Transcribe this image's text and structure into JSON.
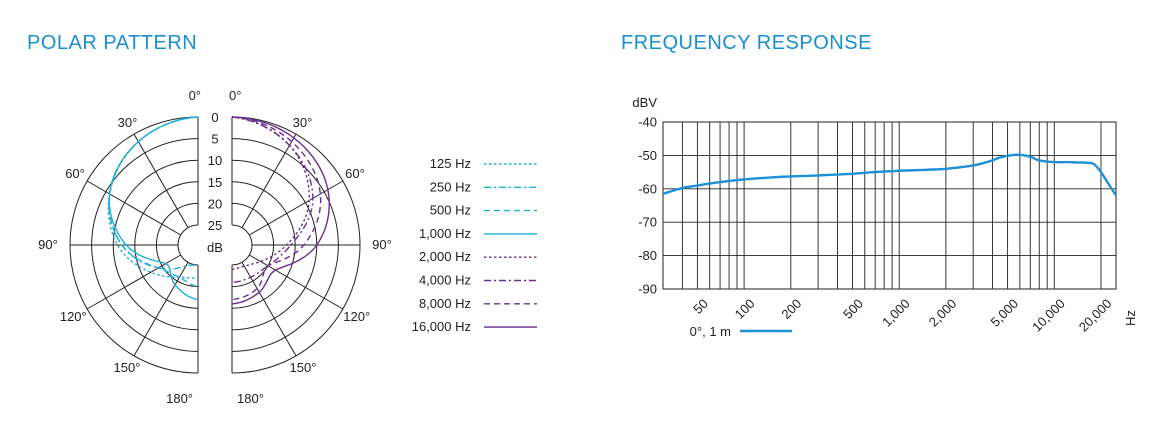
{
  "colors": {
    "title": "#1a8fd0",
    "cyan": "#1fb0d8",
    "purple": "#6b2f8f",
    "freq_line": "#1e90d6",
    "grid": "#222222"
  },
  "polar": {
    "title": "POLAR PATTERN",
    "db_rings": [
      "0",
      "5",
      "10",
      "15",
      "20",
      "25"
    ],
    "db_unit": "dB",
    "left_angles": [
      "0°",
      "30°",
      "60°",
      "90°",
      "120°",
      "150°",
      "180°"
    ],
    "right_angles": [
      "0°",
      "30°",
      "60°",
      "90°",
      "120°",
      "150°",
      "180°"
    ]
  },
  "legend": [
    {
      "label": "125 Hz",
      "style": "dotted",
      "color": "cyan"
    },
    {
      "label": "250 Hz",
      "style": "dash-dot",
      "color": "cyan"
    },
    {
      "label": "500 Hz",
      "style": "dashed",
      "color": "cyan"
    },
    {
      "label": "1,000 Hz",
      "style": "solid",
      "color": "cyan"
    },
    {
      "label": "2,000 Hz",
      "style": "dotted",
      "color": "purple"
    },
    {
      "label": "4,000 Hz",
      "style": "dash-dot",
      "color": "purple"
    },
    {
      "label": "8,000 Hz",
      "style": "dashed",
      "color": "purple"
    },
    {
      "label": "16,000 Hz",
      "style": "solid",
      "color": "purple"
    }
  ],
  "freq": {
    "title": "FREQUENCY RESPONSE",
    "legend_label": "0°, 1 m"
  },
  "chart_data": [
    {
      "type": "polar",
      "title": "POLAR PATTERN",
      "radial_unit": "dB",
      "radial_ticks": [
        0,
        5,
        10,
        15,
        20,
        25
      ],
      "angle_ticks_deg": [
        0,
        30,
        60,
        90,
        120,
        150,
        180
      ],
      "series": [
        {
          "name": "125 Hz",
          "side": "left",
          "angles": [
            0,
            30,
            60,
            90,
            120,
            150,
            180
          ],
          "attenuation_db": [
            0,
            2,
            6,
            11,
            17,
            21,
            22
          ]
        },
        {
          "name": "250 Hz",
          "side": "left",
          "angles": [
            0,
            30,
            60,
            90,
            120,
            150,
            180
          ],
          "attenuation_db": [
            0,
            2,
            6,
            12,
            19,
            24,
            25
          ]
        },
        {
          "name": "500 Hz",
          "side": "left",
          "angles": [
            0,
            30,
            60,
            90,
            120,
            150,
            180
          ],
          "attenuation_db": [
            0,
            2,
            6,
            12,
            19,
            21,
            20
          ]
        },
        {
          "name": "1,000 Hz",
          "side": "left",
          "angles": [
            0,
            30,
            60,
            90,
            120,
            150,
            180
          ],
          "attenuation_db": [
            0,
            2,
            6,
            13,
            21,
            19,
            17
          ]
        },
        {
          "name": "2,000 Hz",
          "side": "right",
          "angles": [
            0,
            30,
            60,
            90,
            120,
            150,
            180
          ],
          "attenuation_db": [
            0,
            3,
            9,
            17,
            22,
            24,
            24
          ]
        },
        {
          "name": "4,000 Hz",
          "side": "right",
          "angles": [
            0,
            30,
            60,
            90,
            120,
            150,
            180
          ],
          "attenuation_db": [
            0,
            3,
            8,
            16,
            20,
            21,
            21
          ]
        },
        {
          "name": "8,000 Hz",
          "side": "right",
          "angles": [
            0,
            30,
            60,
            90,
            120,
            150,
            180
          ],
          "attenuation_db": [
            0,
            2,
            6,
            13,
            20,
            18,
            17
          ]
        },
        {
          "name": "16,000 Hz",
          "side": "right",
          "angles": [
            0,
            30,
            60,
            90,
            120,
            150,
            180
          ],
          "attenuation_db": [
            0,
            1,
            4,
            10,
            18,
            17,
            16
          ]
        }
      ]
    },
    {
      "type": "line",
      "title": "FREQUENCY RESPONSE",
      "xlabel": "Hz",
      "ylabel": "dBV",
      "xscale": "log",
      "xlim": [
        30,
        25000
      ],
      "ylim": [
        -90,
        -40
      ],
      "xticks": [
        50,
        100,
        200,
        500,
        1000,
        2000,
        5000,
        10000,
        20000
      ],
      "xtick_labels": [
        "50",
        "100",
        "200",
        "500",
        "1,000",
        "2,000",
        "5,000",
        "10,000",
        "20,000"
      ],
      "yticks": [
        -40,
        -50,
        -60,
        -70,
        -80,
        -90
      ],
      "grid": true,
      "series": [
        {
          "name": "0°, 1 m",
          "x": [
            30,
            40,
            50,
            70,
            100,
            150,
            200,
            300,
            500,
            700,
            1000,
            1500,
            2000,
            3000,
            3800,
            4500,
            5200,
            6000,
            7000,
            8000,
            10000,
            12000,
            14000,
            16000,
            18000,
            20000,
            22000,
            25000
          ],
          "y": [
            -61.5,
            -59.8,
            -59,
            -58,
            -57.2,
            -56.6,
            -56.3,
            -56,
            -55.5,
            -55,
            -54.6,
            -54.3,
            -54,
            -53,
            -51.8,
            -50.6,
            -50,
            -49.8,
            -50.4,
            -51.5,
            -52,
            -52,
            -52.1,
            -52.2,
            -52.6,
            -55,
            -58,
            -62
          ]
        }
      ]
    }
  ]
}
